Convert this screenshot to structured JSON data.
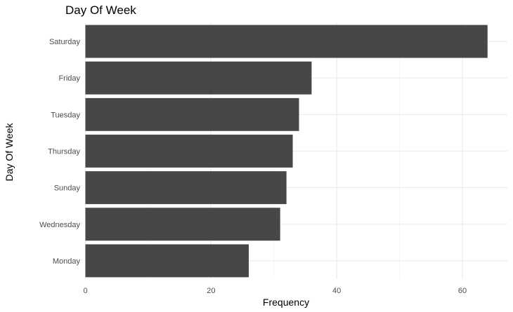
{
  "chart_data": {
    "type": "bar",
    "orientation": "horizontal",
    "title": "Day Of Week",
    "xlabel": "Frequency",
    "ylabel": "Day Of Week",
    "categories": [
      "Saturday",
      "Friday",
      "Tuesday",
      "Thursday",
      "Sunday",
      "Wednesday",
      "Monday"
    ],
    "values": [
      64,
      36,
      34,
      33,
      32,
      31,
      26
    ],
    "xlim": [
      0,
      67
    ],
    "xticks": [
      0,
      20,
      40,
      60
    ],
    "bar_color": "#474747",
    "grid": true
  }
}
